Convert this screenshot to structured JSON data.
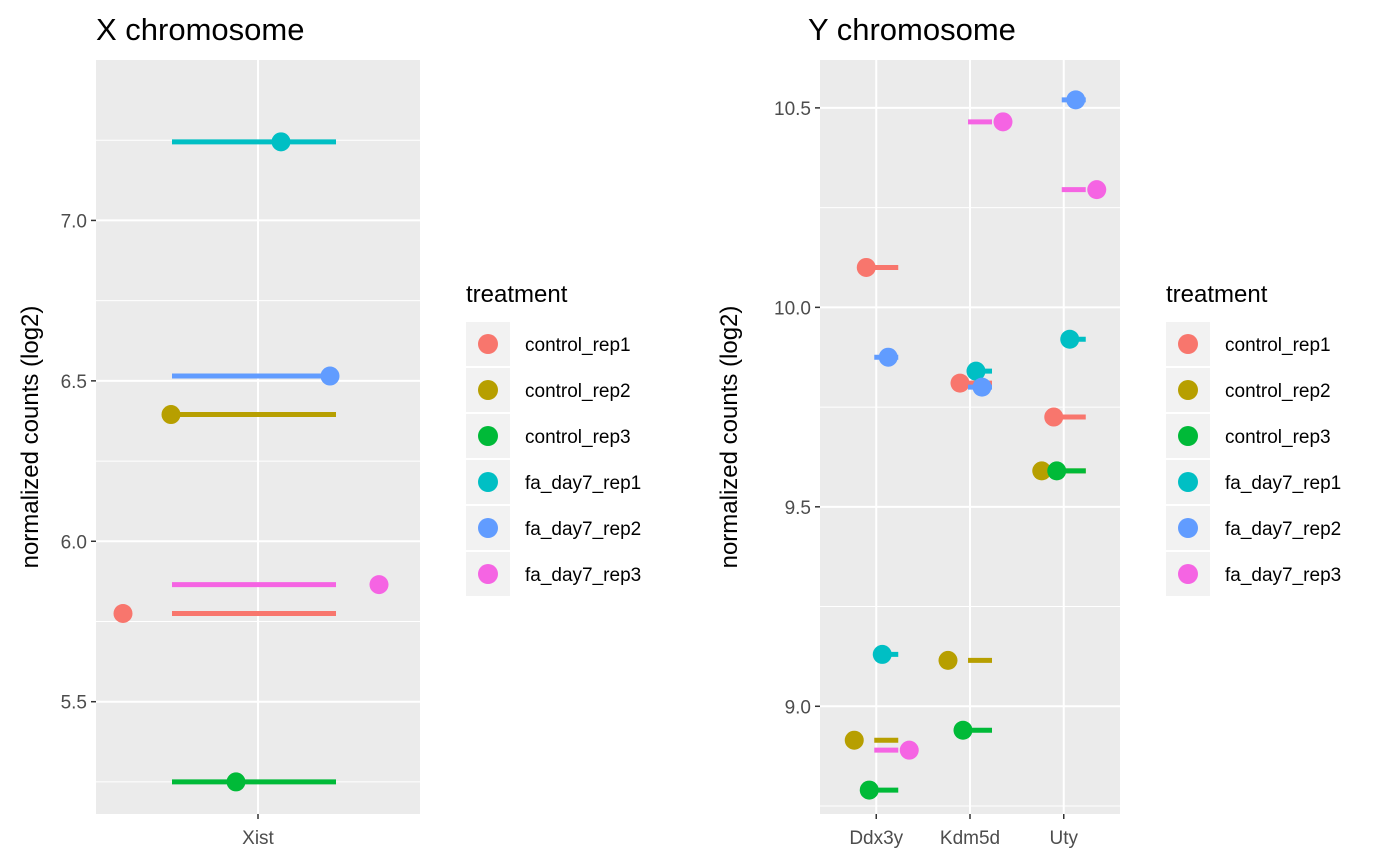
{
  "legend": {
    "title": "treatment",
    "items": [
      {
        "label": "control_rep1",
        "color": "#F8766D"
      },
      {
        "label": "control_rep2",
        "color": "#B79F00"
      },
      {
        "label": "control_rep3",
        "color": "#00BA38"
      },
      {
        "label": "fa_day7_rep1",
        "color": "#00BFC4"
      },
      {
        "label": "fa_day7_rep2",
        "color": "#619CFF"
      },
      {
        "label": "fa_day7_rep3",
        "color": "#F564E3"
      }
    ]
  },
  "chart_data": [
    {
      "type": "scatter",
      "title": "X chromosome",
      "ylabel": "normalized counts (log2)",
      "categories": [
        "Xist"
      ],
      "ylim": [
        5.15,
        7.5
      ],
      "yticks": [
        "5.5",
        "6.0",
        "6.5",
        "7.0"
      ],
      "grid": true,
      "legend_position": "right",
      "series": [
        {
          "name": "control_rep1",
          "values": [
            5.775
          ]
        },
        {
          "name": "control_rep2",
          "values": [
            6.395
          ]
        },
        {
          "name": "control_rep3",
          "values": [
            5.25
          ]
        },
        {
          "name": "fa_day7_rep1",
          "values": [
            7.245
          ]
        },
        {
          "name": "fa_day7_rep2",
          "values": [
            6.515
          ]
        },
        {
          "name": "fa_day7_rep3",
          "values": [
            5.865
          ]
        }
      ]
    },
    {
      "type": "scatter",
      "title": "Y chromosome",
      "ylabel": "normalized counts (log2)",
      "categories": [
        "Ddx3y",
        "Kdm5d",
        "Uty"
      ],
      "ylim": [
        8.73,
        10.62
      ],
      "yticks": [
        "9.0",
        "9.5",
        "10.0",
        "10.5"
      ],
      "grid": true,
      "legend_position": "right",
      "series": [
        {
          "name": "control_rep1",
          "values": [
            10.1,
            9.81,
            9.725
          ]
        },
        {
          "name": "control_rep2",
          "values": [
            8.915,
            9.115,
            9.59
          ]
        },
        {
          "name": "control_rep3",
          "values": [
            8.79,
            8.94,
            9.59
          ]
        },
        {
          "name": "fa_day7_rep1",
          "values": [
            9.13,
            9.84,
            9.92
          ]
        },
        {
          "name": "fa_day7_rep2",
          "values": [
            9.875,
            9.8,
            10.52
          ]
        },
        {
          "name": "fa_day7_rep3",
          "values": [
            8.89,
            10.465,
            10.295
          ]
        }
      ]
    }
  ]
}
